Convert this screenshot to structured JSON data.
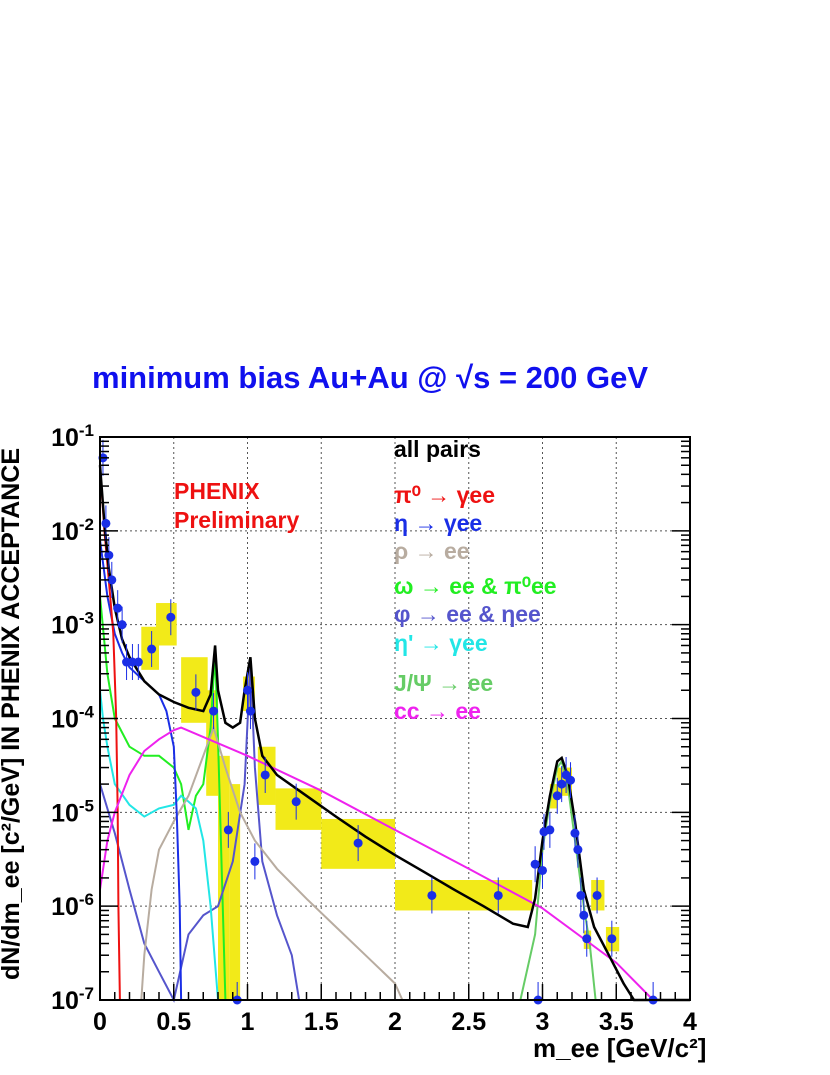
{
  "chart_data": {
    "type": "line",
    "title": "minimum bias Au+Au @ √s = 200 GeV",
    "xlabel": "m_ee [GeV/c^2]",
    "ylabel": "dN/dm_ee [c^2/GeV] IN PHENIX ACCEPTANCE",
    "xlim": [
      0,
      4
    ],
    "ylim": [
      1e-07,
      0.1
    ],
    "yscale": "log",
    "grid": true,
    "x_ticks": [
      "0",
      "0.5",
      "1",
      "1.5",
      "2",
      "2.5",
      "3",
      "3.5",
      "4"
    ],
    "y_ticks": [
      "10^-1",
      "10^-2",
      "10^-3",
      "10^-4",
      "10^-5",
      "10^-6",
      "10^-7"
    ],
    "annotation": [
      "PHENIX",
      "Preliminary"
    ],
    "legend_position": "top-right",
    "series": [
      {
        "name": "all pairs",
        "color": "#000000",
        "points": [
          [
            0.0,
            0.05
          ],
          [
            0.03,
            0.012
          ],
          [
            0.06,
            0.004
          ],
          [
            0.1,
            0.0015
          ],
          [
            0.15,
            0.0007
          ],
          [
            0.2,
            0.00045
          ],
          [
            0.3,
            0.00025
          ],
          [
            0.4,
            0.00018
          ],
          [
            0.5,
            0.00015
          ],
          [
            0.6,
            0.00013
          ],
          [
            0.7,
            0.00012
          ],
          [
            0.75,
            0.00018
          ],
          [
            0.78,
            0.0006
          ],
          [
            0.8,
            0.0002
          ],
          [
            0.85,
            9e-05
          ],
          [
            0.9,
            8e-05
          ],
          [
            0.95,
            9e-05
          ],
          [
            0.98,
            0.0002
          ],
          [
            1.02,
            0.00045
          ],
          [
            1.05,
            0.0001
          ],
          [
            1.1,
            4e-05
          ],
          [
            1.2,
            2.5e-05
          ],
          [
            1.4,
            1.5e-05
          ],
          [
            1.6,
            9e-06
          ],
          [
            1.8,
            5.5e-06
          ],
          [
            2.0,
            3.5e-06
          ],
          [
            2.2,
            2.3e-06
          ],
          [
            2.4,
            1.5e-06
          ],
          [
            2.6,
            1e-06
          ],
          [
            2.8,
            6.5e-07
          ],
          [
            2.9,
            6e-07
          ],
          [
            2.95,
            1.2e-06
          ],
          [
            3.0,
            5e-06
          ],
          [
            3.05,
            1.5e-05
          ],
          [
            3.1,
            3.5e-05
          ],
          [
            3.13,
            3.8e-05
          ],
          [
            3.17,
            2.5e-05
          ],
          [
            3.22,
            8e-06
          ],
          [
            3.28,
            1.5e-06
          ],
          [
            3.35,
            6e-07
          ],
          [
            3.45,
            3e-07
          ],
          [
            3.55,
            1.5e-07
          ],
          [
            3.62,
            1e-07
          ],
          [
            4.0,
            1e-07
          ]
        ]
      },
      {
        "name": "π⁰ → γee",
        "color": "#ee1111",
        "points": [
          [
            0.0,
            0.05
          ],
          [
            0.03,
            0.01
          ],
          [
            0.06,
            0.003
          ],
          [
            0.09,
            0.0008
          ],
          [
            0.11,
            0.0001
          ],
          [
            0.12,
            1e-05
          ],
          [
            0.125,
            1e-06
          ],
          [
            0.135,
            1e-07
          ]
        ]
      },
      {
        "name": "η → γee",
        "color": "#1a2ee6",
        "points": [
          [
            0.0,
            0.008
          ],
          [
            0.05,
            0.002
          ],
          [
            0.1,
            0.0008
          ],
          [
            0.15,
            0.0005
          ],
          [
            0.2,
            0.00035
          ],
          [
            0.3,
            0.00025
          ],
          [
            0.4,
            0.00018
          ],
          [
            0.45,
            0.00012
          ],
          [
            0.5,
            5e-05
          ],
          [
            0.52,
            1e-05
          ],
          [
            0.54,
            1e-06
          ],
          [
            0.55,
            1e-07
          ]
        ]
      },
      {
        "name": "ρ → ee",
        "color": "#b8aca0",
        "points": [
          [
            0.28,
            1e-07
          ],
          [
            0.3,
            3e-07
          ],
          [
            0.35,
            1.5e-06
          ],
          [
            0.4,
            4e-06
          ],
          [
            0.5,
            8e-06
          ],
          [
            0.6,
            1.5e-05
          ],
          [
            0.7,
            4e-05
          ],
          [
            0.77,
            8e-05
          ],
          [
            0.85,
            3e-05
          ],
          [
            0.95,
            1e-05
          ],
          [
            1.05,
            5e-06
          ],
          [
            1.2,
            2.5e-06
          ],
          [
            1.4,
            1.2e-06
          ],
          [
            1.6,
            6e-07
          ],
          [
            1.8,
            3e-07
          ],
          [
            2.0,
            1.5e-07
          ],
          [
            2.05,
            1e-07
          ]
        ]
      },
      {
        "name": "ω → ee & π⁰ee",
        "color": "#22ee22",
        "points": [
          [
            0.0,
            0.002
          ],
          [
            0.05,
            0.0003
          ],
          [
            0.1,
            0.0001
          ],
          [
            0.2,
            5e-05
          ],
          [
            0.3,
            4e-05
          ],
          [
            0.4,
            4e-05
          ],
          [
            0.5,
            3e-05
          ],
          [
            0.55,
            2e-05
          ],
          [
            0.6,
            6.5e-06
          ],
          [
            0.65,
            1.5e-05
          ],
          [
            0.7,
            2e-05
          ],
          [
            0.75,
            8e-05
          ],
          [
            0.78,
            0.0005
          ],
          [
            0.8,
            6e-05
          ],
          [
            0.82,
            5e-06
          ],
          [
            0.85,
            1e-07
          ]
        ]
      },
      {
        "name": "φ → ee & ηee",
        "color": "#5555cc",
        "points": [
          [
            0.0,
            2e-05
          ],
          [
            0.1,
            6e-06
          ],
          [
            0.2,
            1.5e-06
          ],
          [
            0.3,
            4e-07
          ],
          [
            0.4,
            2e-07
          ],
          [
            0.5,
            1e-07
          ],
          [
            0.6,
            5e-07
          ],
          [
            0.7,
            8e-07
          ],
          [
            0.8,
            1e-06
          ],
          [
            0.9,
            3e-06
          ],
          [
            0.98,
            2e-05
          ],
          [
            1.02,
            0.0004
          ],
          [
            1.05,
            3e-05
          ],
          [
            1.1,
            3e-06
          ],
          [
            1.2,
            8e-07
          ],
          [
            1.3,
            3e-07
          ],
          [
            1.35,
            1e-07
          ]
        ]
      },
      {
        "name": "η' → γee",
        "color": "#22e6e6",
        "points": [
          [
            0.0,
            0.0002
          ],
          [
            0.02,
            0.0001
          ],
          [
            0.05,
            5e-05
          ],
          [
            0.1,
            2e-05
          ],
          [
            0.2,
            1.2e-05
          ],
          [
            0.3,
            9e-06
          ],
          [
            0.4,
            1.1e-05
          ],
          [
            0.5,
            1.2e-05
          ],
          [
            0.55,
            1.5e-05
          ],
          [
            0.6,
            1.3e-05
          ],
          [
            0.65,
            1.1e-05
          ],
          [
            0.7,
            5e-06
          ],
          [
            0.75,
            1e-06
          ],
          [
            0.8,
            1e-07
          ]
        ]
      },
      {
        "name": "J/Ψ → ee",
        "color": "#66cc66",
        "points": [
          [
            2.85,
            1e-07
          ],
          [
            2.95,
            5e-07
          ],
          [
            3.0,
            4e-06
          ],
          [
            3.05,
            1.3e-05
          ],
          [
            3.1,
            3e-05
          ],
          [
            3.13,
            3.5e-05
          ],
          [
            3.17,
            2e-05
          ],
          [
            3.22,
            5e-06
          ],
          [
            3.28,
            1e-06
          ],
          [
            3.32,
            4e-07
          ],
          [
            3.36,
            1e-07
          ]
        ]
      },
      {
        "name": "cc → ee",
        "color": "#ee22ee",
        "points": [
          [
            0.0,
            1.5e-06
          ],
          [
            0.05,
            5e-06
          ],
          [
            0.1,
            1e-05
          ],
          [
            0.2,
            2.5e-05
          ],
          [
            0.3,
            4.5e-05
          ],
          [
            0.4,
            6e-05
          ],
          [
            0.5,
            7.5e-05
          ],
          [
            0.55,
            8e-05
          ],
          [
            1.0,
            4e-05
          ],
          [
            1.5,
            1.7e-05
          ],
          [
            2.0,
            6.5e-06
          ],
          [
            2.5,
            2.5e-06
          ],
          [
            3.0,
            9.5e-07
          ],
          [
            3.5,
            2.5e-07
          ],
          [
            3.75,
            1e-07
          ],
          [
            4.0,
            1e-07
          ]
        ]
      }
    ],
    "data_points": [
      {
        "x": 0.02,
        "y": 0.06
      },
      {
        "x": 0.04,
        "y": 0.012
      },
      {
        "x": 0.06,
        "y": 0.0055
      },
      {
        "x": 0.08,
        "y": 0.003
      },
      {
        "x": 0.12,
        "y": 0.0015
      },
      {
        "x": 0.15,
        "y": 0.001
      },
      {
        "x": 0.18,
        "y": 0.0004
      },
      {
        "x": 0.22,
        "y": 0.0004
      },
      {
        "x": 0.26,
        "y": 0.0004
      },
      {
        "x": 0.35,
        "y": 0.00055
      },
      {
        "x": 0.48,
        "y": 0.0012
      },
      {
        "x": 0.65,
        "y": 0.00019
      },
      {
        "x": 0.77,
        "y": 0.00012
      },
      {
        "x": 0.87,
        "y": 6.5e-06
      },
      {
        "x": 0.93,
        "y": 1e-07
      },
      {
        "x": 1.0,
        "y": 0.0002
      },
      {
        "x": 1.02,
        "y": 0.00012
      },
      {
        "x": 1.05,
        "y": 3e-06
      },
      {
        "x": 1.12,
        "y": 2.5e-05
      },
      {
        "x": 1.33,
        "y": 1.3e-05
      },
      {
        "x": 1.75,
        "y": 4.7e-06
      },
      {
        "x": 2.25,
        "y": 1.3e-06
      },
      {
        "x": 2.7,
        "y": 1.3e-06
      },
      {
        "x": 2.95,
        "y": 2.8e-06
      },
      {
        "x": 2.97,
        "y": 1e-07
      },
      {
        "x": 3.0,
        "y": 2.4e-06
      },
      {
        "x": 3.01,
        "y": 6.2e-06
      },
      {
        "x": 3.05,
        "y": 6.5e-06
      },
      {
        "x": 3.1,
        "y": 1.5e-05
      },
      {
        "x": 3.13,
        "y": 2e-05
      },
      {
        "x": 3.16,
        "y": 2.5e-05
      },
      {
        "x": 3.19,
        "y": 2.2e-05
      },
      {
        "x": 3.22,
        "y": 6e-06
      },
      {
        "x": 3.24,
        "y": 4e-06
      },
      {
        "x": 3.26,
        "y": 1.3e-06
      },
      {
        "x": 3.28,
        "y": 8e-07
      },
      {
        "x": 3.3,
        "y": 4.5e-07
      },
      {
        "x": 3.37,
        "y": 1.3e-06
      },
      {
        "x": 3.47,
        "y": 4.5e-07
      },
      {
        "x": 3.75,
        "y": 1e-07
      }
    ]
  },
  "labels": {
    "title": "minimum bias Au+Au @ √s = 200 GeV",
    "ylabel": "dN/dm_ee [c²/GeV] IN PHENIX ACCEPTANCE",
    "xlabel": "m_ee [GeV/c²]",
    "prelim1": "PHENIX",
    "prelim2": "Preliminary",
    "legend": [
      "all pairs",
      "π⁰ → γee",
      "η → γee",
      "ρ → ee",
      "ω → ee & π⁰ee",
      "φ → ee & ηee",
      "η' → γee",
      "J/Ψ → ee",
      "cc → ee"
    ]
  }
}
